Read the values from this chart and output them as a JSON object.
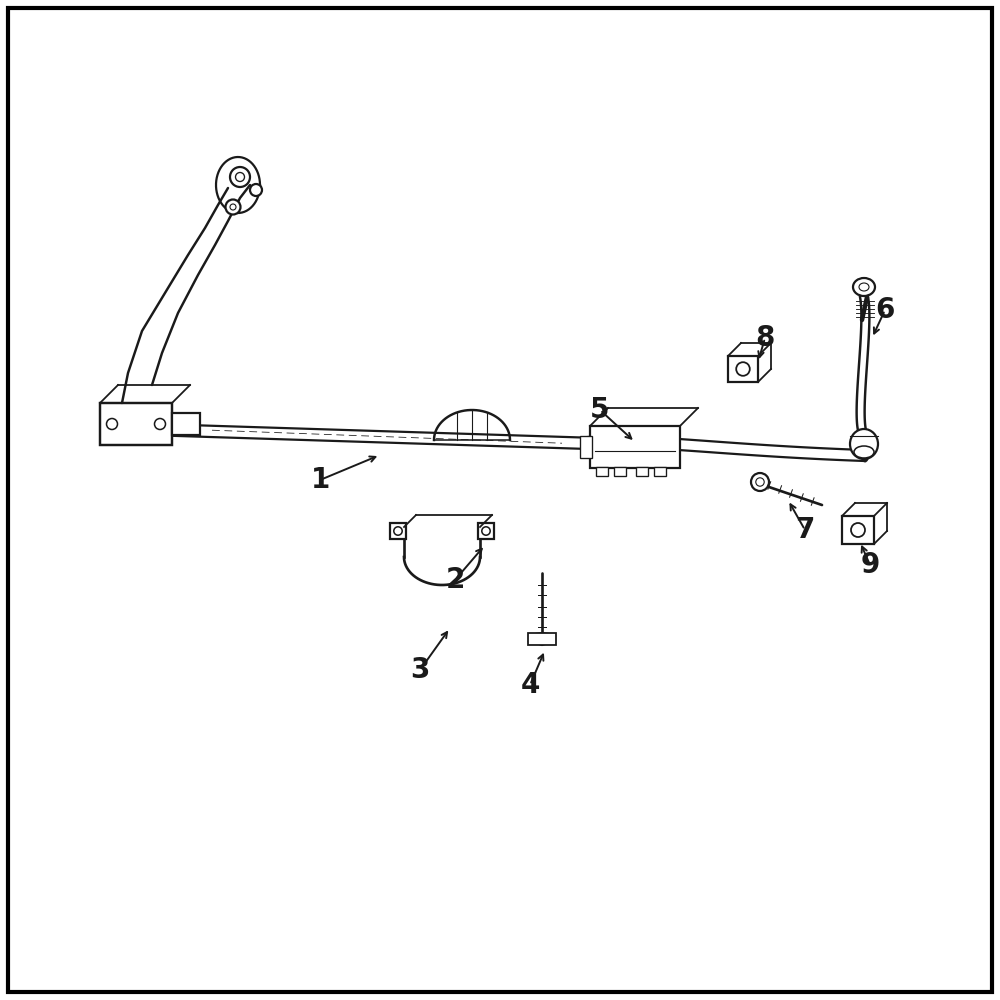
{
  "bg_color": "#ffffff",
  "line_color": "#1a1a1a",
  "border_color": "#000000",
  "label_fontsize": 20,
  "border_linewidth": 3.0,
  "part_linewidth": 1.6,
  "figsize": [
    10,
    10
  ],
  "dpi": 100,
  "labels": [
    [
      "1",
      3.2,
      5.2,
      3.8,
      5.45
    ],
    [
      "2",
      4.55,
      4.2,
      4.85,
      4.55
    ],
    [
      "3",
      4.2,
      3.3,
      4.5,
      3.72
    ],
    [
      "4",
      5.3,
      3.15,
      5.45,
      3.5
    ],
    [
      "5",
      6.0,
      5.9,
      6.35,
      5.58
    ],
    [
      "6",
      8.85,
      6.9,
      8.72,
      6.62
    ],
    [
      "7",
      8.05,
      4.7,
      7.88,
      5.0
    ],
    [
      "8",
      7.65,
      6.62,
      7.58,
      6.38
    ],
    [
      "9",
      8.7,
      4.35,
      8.6,
      4.58
    ]
  ]
}
